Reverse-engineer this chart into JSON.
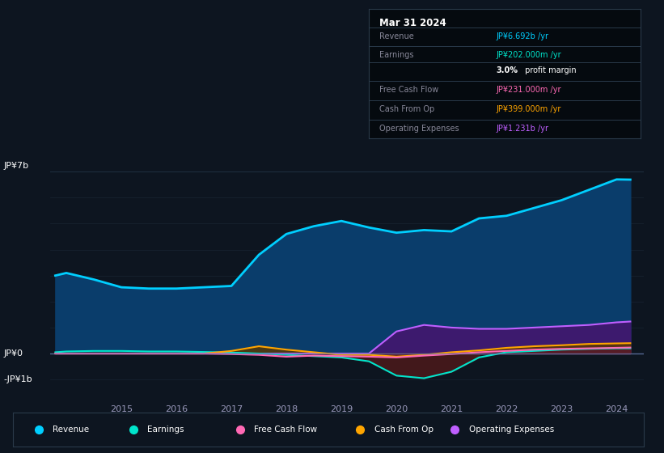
{
  "bg_color": "#0d1520",
  "plot_bg_color": "#0d1520",
  "ylabel_top": "JP¥7b",
  "ylabel_zero": "JP¥0",
  "ylabel_neg": "-JP¥1b",
  "info_box_title": "Mar 31 2024",
  "info_rows": [
    {
      "label": "Revenue",
      "value": "JP¥6.692b /yr",
      "value_color": "#00cfff"
    },
    {
      "label": "Earnings",
      "value": "JP¥202.000m /yr",
      "value_color": "#00e5cc"
    },
    {
      "label": "",
      "bold": "3.0%",
      "rest": " profit margin",
      "value_color": "#ffffff"
    },
    {
      "label": "Free Cash Flow",
      "value": "JP¥231.000m /yr",
      "value_color": "#ff69b4"
    },
    {
      "label": "Cash From Op",
      "value": "JP¥399.000m /yr",
      "value_color": "#ffa500"
    },
    {
      "label": "Operating Expenses",
      "value": "JP¥1.231b /yr",
      "value_color": "#bf5fff"
    }
  ],
  "legend_items": [
    {
      "label": "Revenue",
      "color": "#00cfff"
    },
    {
      "label": "Earnings",
      "color": "#00e5cc"
    },
    {
      "label": "Free Cash Flow",
      "color": "#ff69b4"
    },
    {
      "label": "Cash From Op",
      "color": "#ffa500"
    },
    {
      "label": "Operating Expenses",
      "color": "#bf5fff"
    }
  ],
  "years": [
    2013.8,
    2014.0,
    2014.5,
    2015.0,
    2015.5,
    2016.0,
    2016.5,
    2017.0,
    2017.5,
    2018.0,
    2018.5,
    2019.0,
    2019.5,
    2020.0,
    2020.5,
    2021.0,
    2021.5,
    2022.0,
    2022.5,
    2023.0,
    2023.5,
    2024.0,
    2024.25
  ],
  "revenue": [
    3.0,
    3.1,
    2.85,
    2.55,
    2.5,
    2.5,
    2.55,
    2.6,
    3.8,
    4.6,
    4.9,
    5.1,
    4.85,
    4.65,
    4.75,
    4.7,
    5.2,
    5.3,
    5.6,
    5.9,
    6.3,
    6.7,
    6.692
  ],
  "earnings": [
    0.05,
    0.08,
    0.1,
    0.1,
    0.08,
    0.08,
    0.06,
    0.04,
    0.0,
    -0.05,
    -0.1,
    -0.15,
    -0.3,
    -0.85,
    -0.95,
    -0.7,
    -0.15,
    0.05,
    0.1,
    0.15,
    0.18,
    0.2,
    0.202
  ],
  "free_cash": [
    0.0,
    0.0,
    0.0,
    0.0,
    0.0,
    0.0,
    0.0,
    -0.02,
    -0.05,
    -0.12,
    -0.08,
    -0.1,
    -0.12,
    -0.15,
    -0.08,
    -0.02,
    0.05,
    0.1,
    0.15,
    0.18,
    0.2,
    0.22,
    0.231
  ],
  "cash_op": [
    0.0,
    0.0,
    0.0,
    0.0,
    0.0,
    0.0,
    0.0,
    0.1,
    0.28,
    0.15,
    0.05,
    -0.05,
    -0.05,
    -0.12,
    -0.05,
    0.05,
    0.12,
    0.22,
    0.28,
    0.32,
    0.37,
    0.39,
    0.399
  ],
  "op_expenses": [
    0.0,
    0.0,
    0.0,
    0.0,
    0.0,
    0.0,
    0.0,
    0.0,
    0.0,
    0.0,
    0.0,
    0.0,
    0.0,
    0.85,
    1.1,
    1.0,
    0.95,
    0.95,
    1.0,
    1.05,
    1.1,
    1.2,
    1.231
  ],
  "revenue_line_color": "#00cfff",
  "revenue_fill_color": "#0a3d6b",
  "earnings_line_color": "#00e5cc",
  "earnings_pos_fill": "#004d44",
  "earnings_neg_fill": "#5a1a1a",
  "free_cash_line_color": "#ff69b4",
  "free_cash_fill_color": "#5a1030",
  "cash_op_line_color": "#ffa500",
  "cash_op_fill_color": "#5a3800",
  "op_expenses_line_color": "#bf5fff",
  "op_expenses_fill_color": "#3d1a6e",
  "grid_color": "#1e2d3e",
  "zero_line_color": "#6677aa",
  "ylim": [
    -1.3,
    8.2
  ],
  "xlim": [
    2013.7,
    2024.5
  ],
  "xtick_labels": [
    "2015",
    "2016",
    "2017",
    "2018",
    "2019",
    "2020",
    "2021",
    "2022",
    "2023",
    "2024"
  ],
  "xtick_values": [
    2015,
    2016,
    2017,
    2018,
    2019,
    2020,
    2021,
    2022,
    2023,
    2024
  ]
}
